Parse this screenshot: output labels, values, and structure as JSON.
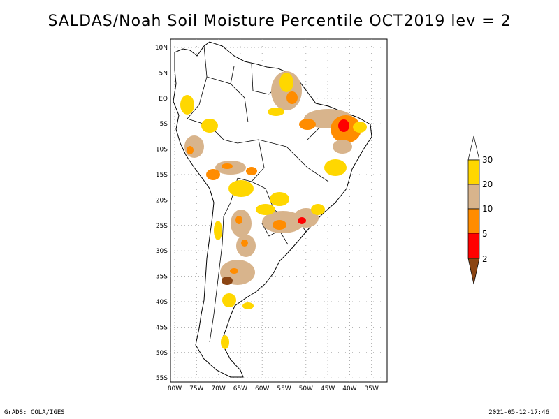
{
  "title": "SALDAS/Noah Soil Moisture Percentile OCT2019 lev = 2",
  "footer": {
    "left": "GrADS: COLA/IGES",
    "right": "2021-05-12-17:46"
  },
  "map": {
    "lat_ticks": [
      "10N",
      "5N",
      "EQ",
      "5S",
      "10S",
      "15S",
      "20S",
      "25S",
      "30S",
      "35S",
      "40S",
      "45S",
      "50S",
      "55S"
    ],
    "lon_ticks": [
      "80W",
      "75W",
      "70W",
      "65W",
      "60W",
      "55W",
      "50W",
      "45W",
      "40W",
      "35W"
    ],
    "lon_range": [
      -80,
      -35
    ],
    "lat_range": [
      -56,
      12
    ]
  },
  "legend": {
    "labels": [
      "30",
      "20",
      "10",
      "5",
      "2"
    ],
    "colors": {
      "above_30": "#ffffff",
      "20_30": "#ffd700",
      "10_20": "#d8b48c",
      "5_10": "#ff8c00",
      "2_5": "#ff0000",
      "below_2": "#8b4513"
    }
  }
}
